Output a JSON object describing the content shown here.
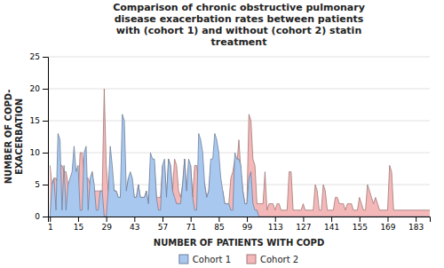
{
  "chart_data": {
    "type": "area",
    "title": "Comparison of chronic obstructive pulmonary\ndisease exacerbation rates between patients\nwith (cohort 1) and without (cohort 2) statin\ntreatment",
    "x_label": "NUMBER OF PATIENTS WITH COPD",
    "y_label": "NUMBER OF COPD-\nEXACERBATION",
    "x": [
      1,
      2,
      3,
      4,
      5,
      6,
      7,
      8,
      9,
      10,
      11,
      12,
      13,
      14,
      15,
      16,
      17,
      18,
      19,
      20,
      21,
      22,
      23,
      24,
      25,
      26,
      27,
      28,
      29,
      30,
      31,
      32,
      33,
      34,
      35,
      36,
      37,
      38,
      39,
      40,
      41,
      42,
      43,
      44,
      45,
      46,
      47,
      48,
      49,
      50,
      51,
      52,
      53,
      54,
      55,
      56,
      57,
      58,
      59,
      60,
      61,
      62,
      63,
      64,
      65,
      66,
      67,
      68,
      69,
      70,
      71,
      72,
      73,
      74,
      75,
      76,
      77,
      78,
      79,
      80,
      81,
      82,
      83,
      84,
      85,
      86,
      87,
      88,
      89,
      90,
      91,
      92,
      93,
      94,
      95,
      96,
      97,
      98,
      99,
      100,
      101,
      102,
      103,
      104,
      105,
      106,
      107,
      108,
      109,
      110,
      111,
      112,
      113,
      114,
      115,
      116,
      117,
      118,
      119,
      120,
      121,
      122,
      123,
      124,
      125,
      126,
      127,
      128,
      129,
      130,
      131,
      132,
      133,
      134,
      135,
      136,
      137,
      138,
      139,
      140,
      141,
      142,
      143,
      144,
      145,
      146,
      147,
      148,
      149,
      150,
      151,
      152,
      153,
      154,
      155,
      156,
      157,
      158,
      159,
      160,
      161,
      162,
      163,
      164,
      165,
      166,
      167,
      168,
      169,
      170,
      171,
      172,
      173,
      174,
      175,
      176,
      177,
      178,
      179,
      180,
      181,
      182,
      183,
      184,
      185,
      186,
      187,
      188,
      189,
      190
    ],
    "series": [
      {
        "name": "Cohort 1",
        "color": "#a8c8f0",
        "values": [
          0,
          5,
          6,
          1,
          13,
          12,
          1,
          8,
          1,
          5,
          6,
          7,
          11,
          7,
          8,
          1,
          1,
          10,
          11,
          1,
          6,
          7,
          5,
          1,
          1,
          4,
          4,
          0,
          0,
          4,
          11,
          8,
          4,
          4,
          3,
          3,
          16,
          15,
          4,
          6,
          7,
          6,
          3,
          3,
          5,
          3,
          3,
          3,
          4,
          2,
          10,
          9,
          9,
          3,
          1,
          1,
          8,
          9,
          3,
          9,
          8,
          4,
          3,
          2,
          2,
          2,
          5,
          9,
          4,
          9,
          8,
          3,
          1,
          1,
          13,
          12,
          10,
          5,
          3,
          4,
          9,
          9,
          13,
          12,
          10,
          6,
          4,
          2,
          2,
          2,
          1,
          1,
          10,
          9,
          9,
          8,
          4,
          2,
          2,
          6,
          7,
          2,
          1,
          1,
          0,
          0,
          0,
          0,
          0,
          0,
          0,
          0,
          0,
          0,
          0,
          0,
          0,
          0,
          0,
          0,
          0,
          0,
          0,
          0,
          0,
          0,
          0,
          0,
          0,
          0,
          0,
          0,
          0,
          0,
          0,
          0,
          0,
          0,
          0,
          0,
          0,
          0,
          0,
          0,
          0,
          0,
          0,
          0,
          0,
          0,
          0,
          0,
          0,
          0,
          0,
          0,
          0,
          0,
          0,
          0,
          0,
          0,
          0,
          0,
          0,
          0,
          0,
          0,
          0,
          0,
          0,
          0,
          0,
          0,
          0,
          0,
          0,
          0,
          0,
          0,
          0,
          0,
          0,
          0,
          0,
          0,
          0,
          0,
          0,
          0
        ]
      },
      {
        "name": "Cohort 2",
        "color": "#f5b8b8",
        "values": [
          8,
          5,
          6,
          6,
          5,
          8,
          8,
          7,
          7,
          5,
          4,
          4,
          4,
          3,
          3,
          10,
          10,
          7,
          6,
          6,
          5,
          7,
          4,
          4,
          4,
          4,
          4,
          20,
          8,
          4,
          8,
          6,
          4,
          4,
          3,
          3,
          6,
          5,
          4,
          6,
          6,
          5,
          3,
          3,
          5,
          3,
          3,
          3,
          4,
          2,
          8,
          8,
          8,
          3,
          3,
          3,
          8,
          8,
          3,
          9,
          8,
          4,
          9,
          8,
          4,
          3,
          5,
          9,
          4,
          8,
          8,
          3,
          8,
          8,
          6,
          5,
          6,
          5,
          3,
          4,
          8,
          5,
          6,
          5,
          6,
          4,
          4,
          2,
          2,
          2,
          6,
          7,
          9,
          8,
          12,
          7,
          4,
          2,
          2,
          16,
          15,
          9,
          8,
          2,
          2,
          2,
          2,
          7,
          1,
          2,
          2,
          2,
          1,
          2,
          2,
          1,
          1,
          1,
          1,
          7,
          7,
          1,
          1,
          1,
          1,
          1,
          2,
          1,
          1,
          1,
          1,
          1,
          5,
          4,
          1,
          1,
          5,
          4,
          1,
          1,
          1,
          1,
          3,
          3,
          2,
          2,
          2,
          1,
          2,
          2,
          2,
          1,
          1,
          1,
          3,
          2,
          1,
          1,
          5,
          4,
          3,
          2,
          3,
          2,
          1,
          1,
          1,
          1,
          1,
          8,
          7,
          1,
          1,
          1,
          1,
          1,
          1,
          1,
          1,
          1,
          1,
          1,
          1,
          1,
          1,
          1,
          1,
          1,
          1,
          1
        ]
      }
    ],
    "xlim": [
      0,
      190
    ],
    "xticks": [
      1,
      15,
      29,
      43,
      57,
      71,
      85,
      99,
      113,
      127,
      141,
      155,
      169,
      183
    ],
    "ylim": [
      0,
      25
    ],
    "yticks": [
      0,
      5,
      10,
      15,
      20,
      25
    ],
    "grid": true,
    "legend": "bottom"
  }
}
